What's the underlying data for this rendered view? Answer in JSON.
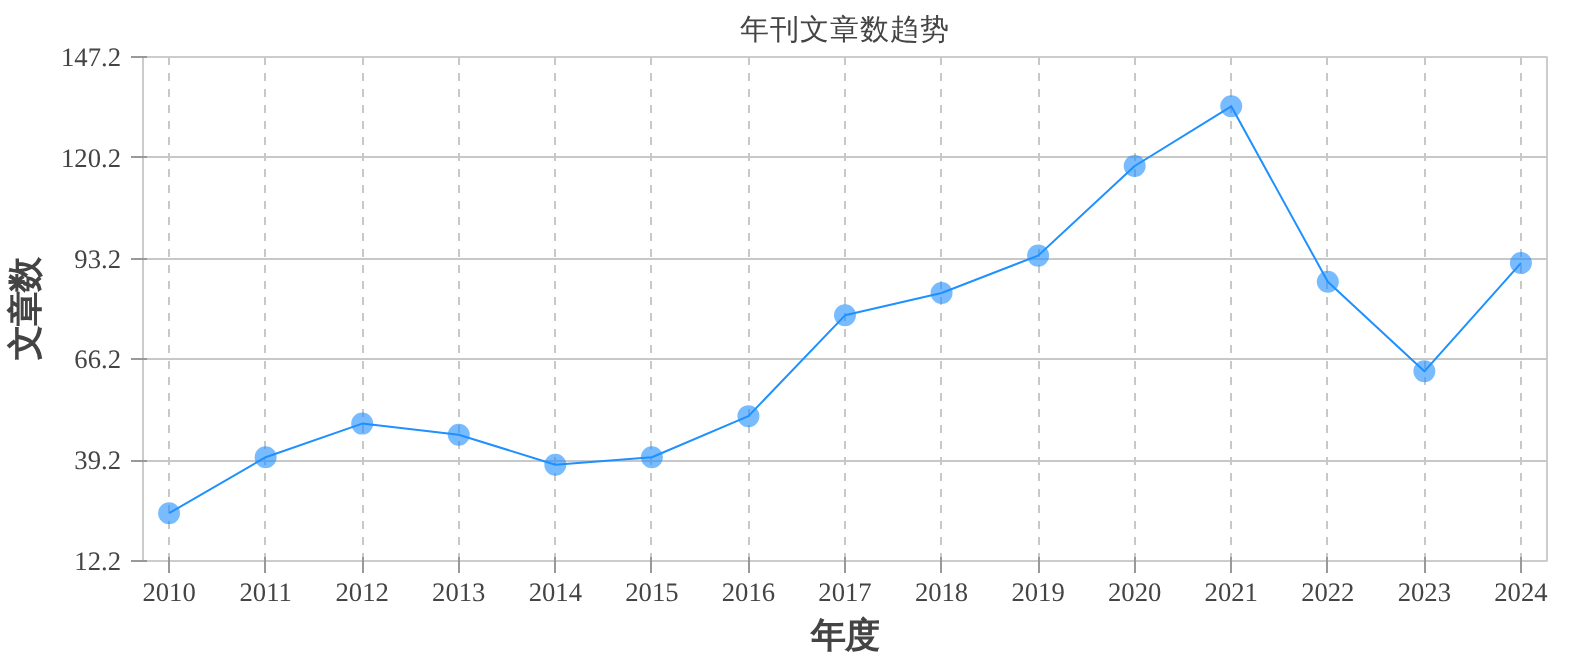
{
  "chart_data": {
    "type": "line",
    "title": "年刊文章数趋势",
    "xlabel": "年度",
    "ylabel": "文章数",
    "categories": [
      "2010",
      "2011",
      "2012",
      "2013",
      "2014",
      "2015",
      "2016",
      "2017",
      "2018",
      "2019",
      "2020",
      "2021",
      "2022",
      "2023",
      "2024"
    ],
    "series": [
      {
        "color": "#1e90ff",
        "values": [
          25,
          40,
          49,
          46,
          38,
          40,
          51,
          78,
          84,
          94,
          118,
          134,
          87,
          63,
          92
        ]
      }
    ],
    "ylim": [
      12.2,
      147.2
    ],
    "yticks": [
      12.2,
      39.2,
      66.2,
      93.2,
      120.2,
      147.2
    ],
    "grid": true,
    "marker": "circle",
    "line_style": "solid"
  }
}
